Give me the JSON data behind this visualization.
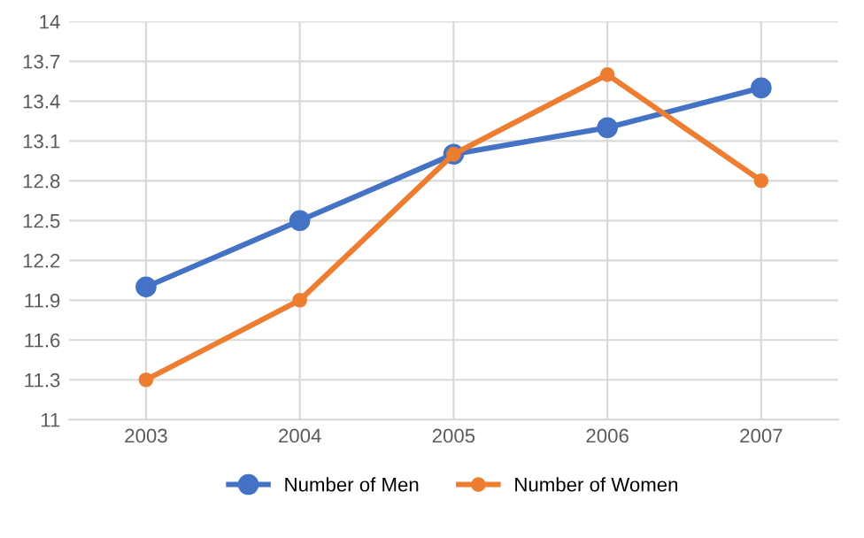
{
  "chart_data": {
    "type": "line",
    "categories": [
      "2003",
      "2004",
      "2005",
      "2006",
      "2007"
    ],
    "series": [
      {
        "name": "Number of Men",
        "color": "#4472c4",
        "values": [
          12,
          12.5,
          13,
          13.2,
          13.5
        ]
      },
      {
        "name": "Number of Women",
        "color": "#ed7d31",
        "values": [
          11.3,
          11.9,
          13,
          13.6,
          12.8
        ]
      }
    ],
    "ylim": [
      11,
      14
    ],
    "yticks": [
      11,
      11.3,
      11.6,
      11.9,
      12.2,
      12.5,
      12.8,
      13.1,
      13.4,
      13.7,
      14
    ],
    "grid": true,
    "legend": "bottom",
    "marker": "circle",
    "line_style": "solid"
  }
}
